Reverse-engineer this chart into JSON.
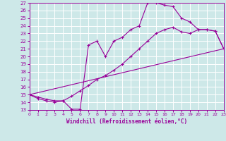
{
  "xlabel": "Windchill (Refroidissement éolien,°C)",
  "bg_color": "#cde8e8",
  "grid_color": "#ffffff",
  "line_color": "#990099",
  "xlim": [
    0,
    23
  ],
  "ylim": [
    13,
    27
  ],
  "xticks": [
    0,
    1,
    2,
    3,
    4,
    5,
    6,
    7,
    8,
    9,
    10,
    11,
    12,
    13,
    14,
    15,
    16,
    17,
    18,
    19,
    20,
    21,
    22,
    23
  ],
  "yticks": [
    13,
    14,
    15,
    16,
    17,
    18,
    19,
    20,
    21,
    22,
    23,
    24,
    25,
    26,
    27
  ],
  "curve1_x": [
    0,
    1,
    2,
    3,
    4,
    5,
    6,
    7,
    8,
    9,
    10,
    11,
    12,
    13,
    14,
    15,
    16,
    17,
    18,
    19,
    20,
    21,
    22,
    23
  ],
  "curve1_y": [
    15.0,
    14.7,
    14.4,
    14.2,
    14.2,
    13.1,
    13.1,
    21.5,
    22.0,
    20.0,
    22.0,
    22.5,
    23.5,
    24.0,
    27.0,
    27.0,
    26.7,
    26.5,
    25.0,
    24.5,
    23.5,
    23.5,
    23.3,
    21.0
  ],
  "curve2_x": [
    0,
    1,
    2,
    3,
    4,
    5,
    6,
    7,
    8,
    9,
    10,
    11,
    12,
    13,
    14,
    15,
    16,
    17,
    18,
    19,
    20,
    21,
    22,
    23
  ],
  "curve2_y": [
    15.0,
    14.5,
    14.2,
    14.0,
    14.2,
    14.8,
    15.5,
    16.2,
    17.0,
    17.5,
    18.2,
    19.0,
    20.0,
    21.0,
    22.0,
    23.0,
    23.5,
    23.8,
    23.2,
    23.0,
    23.5,
    23.5,
    23.3,
    21.0
  ],
  "curve3_x": [
    0,
    23
  ],
  "curve3_y": [
    15.0,
    21.0
  ]
}
